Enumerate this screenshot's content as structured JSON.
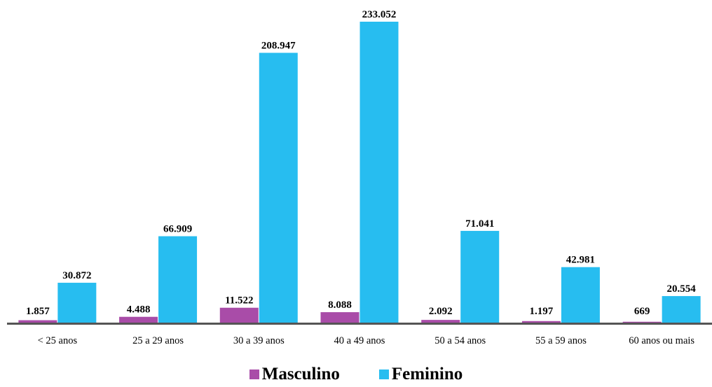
{
  "chart_data": {
    "type": "bar",
    "categories": [
      "< 25 anos",
      "25 a 29 anos",
      "30 a 39 anos",
      "40 a 49 anos",
      "50 a 54 anos",
      "55 a 59 anos",
      "60 anos ou mais"
    ],
    "series": [
      {
        "name": "Masculino",
        "color": "#a94ca8",
        "values": [
          1857,
          4488,
          11522,
          8088,
          2092,
          1197,
          669
        ],
        "labels": [
          "1.857",
          "4.488",
          "11.522",
          "8.088",
          "2.092",
          "1.197",
          "669"
        ]
      },
      {
        "name": "Feminino",
        "color": "#27bdf0",
        "values": [
          30872,
          66909,
          208947,
          233052,
          71041,
          42981,
          20554
        ],
        "labels": [
          "30.872",
          "66.909",
          "208.947",
          "233.052",
          "71.041",
          "42.981",
          "20.554"
        ]
      }
    ],
    "ylim": [
      0,
      233052
    ],
    "grid": false,
    "legend_position": "bottom",
    "axis_color": "#555555"
  }
}
